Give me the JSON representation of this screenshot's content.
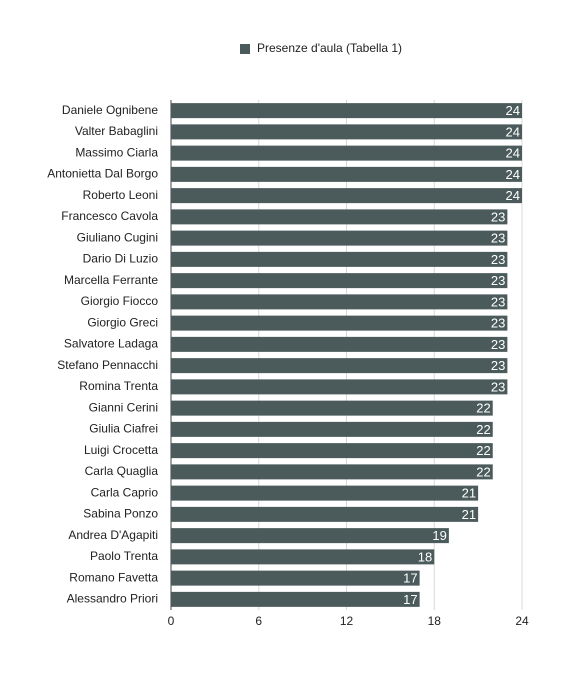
{
  "chart_data": {
    "type": "bar",
    "orientation": "horizontal",
    "categories": [
      "Daniele Ognibene",
      "Valter Babaglini",
      "Massimo Ciarla",
      "Antonietta Dal Borgo",
      "Roberto Leoni",
      "Francesco Cavola",
      "Giuliano Cugini",
      "Dario Di Luzio",
      "Marcella Ferrante",
      "Giorgio Fiocco",
      "Giorgio Greci",
      "Salvatore Ladaga",
      "Stefano Pennacchi",
      "Romina Trenta",
      "Gianni Cerini",
      "Giulia Ciafrei",
      "Luigi Crocetta",
      "Carla Quaglia",
      "Carla Caprio",
      "Sabina Ponzo",
      "Andrea D'Agapiti",
      "Paolo Trenta",
      "Romano Favetta",
      "Alessandro Priori"
    ],
    "series": [
      {
        "name": "Presenze d'aula (Tabella 1)",
        "color": "#4b5b5b",
        "values": [
          24,
          24,
          24,
          24,
          24,
          23,
          23,
          23,
          23,
          23,
          23,
          23,
          23,
          23,
          22,
          22,
          22,
          22,
          21,
          21,
          19,
          18,
          17,
          17
        ]
      }
    ],
    "xlim": [
      0,
      24
    ],
    "xticks": [
      0,
      6,
      12,
      18,
      24
    ],
    "grid": true,
    "legend": "top"
  }
}
